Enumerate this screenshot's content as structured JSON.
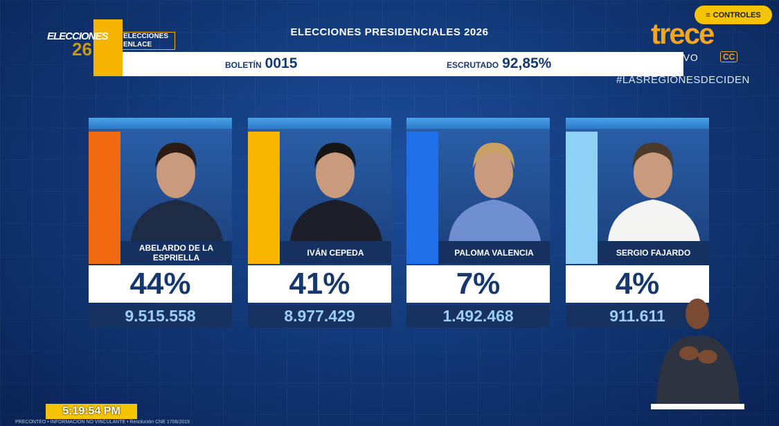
{
  "header": {
    "logo_primary": "ELECCIONES",
    "logo_year": "26",
    "logo_badge": [
      "ELECCIONES",
      "ENLACE"
    ],
    "title": "ELECCIONES PRESIDENCIALES 2026",
    "bulletin": {
      "label": "BOLETÍN",
      "value": "0015"
    },
    "counted": {
      "label": "ESCRUTADO",
      "value": "92,85%"
    }
  },
  "channel": {
    "name": "trece",
    "live": "EN VIVO",
    "cc": "CC",
    "hashtag": "#LASREGIONESDECIDEN"
  },
  "controls": "CONTROLES",
  "candidates": [
    {
      "name": "ABELARDO DE LA ESPRIELLA",
      "percent": "44%",
      "votes": "9.515.558",
      "color": "#f26a0f"
    },
    {
      "name": "IVÁN CEPEDA",
      "percent": "41%",
      "votes": "8.977.429",
      "color": "#f7b500"
    },
    {
      "name": "PALOMA VALENCIA",
      "percent": "7%",
      "votes": "1.492.468",
      "color": "#1f6fe8"
    },
    {
      "name": "SERGIO FAJARDO",
      "percent": "4%",
      "votes": "911.611",
      "color": "#8fd0f7"
    }
  ],
  "clock": "5:19:54 PM",
  "footer": "PRECONTEO • INFORMACIÓN NO VINCULANTE • Resolución CNE 1706/2019"
}
